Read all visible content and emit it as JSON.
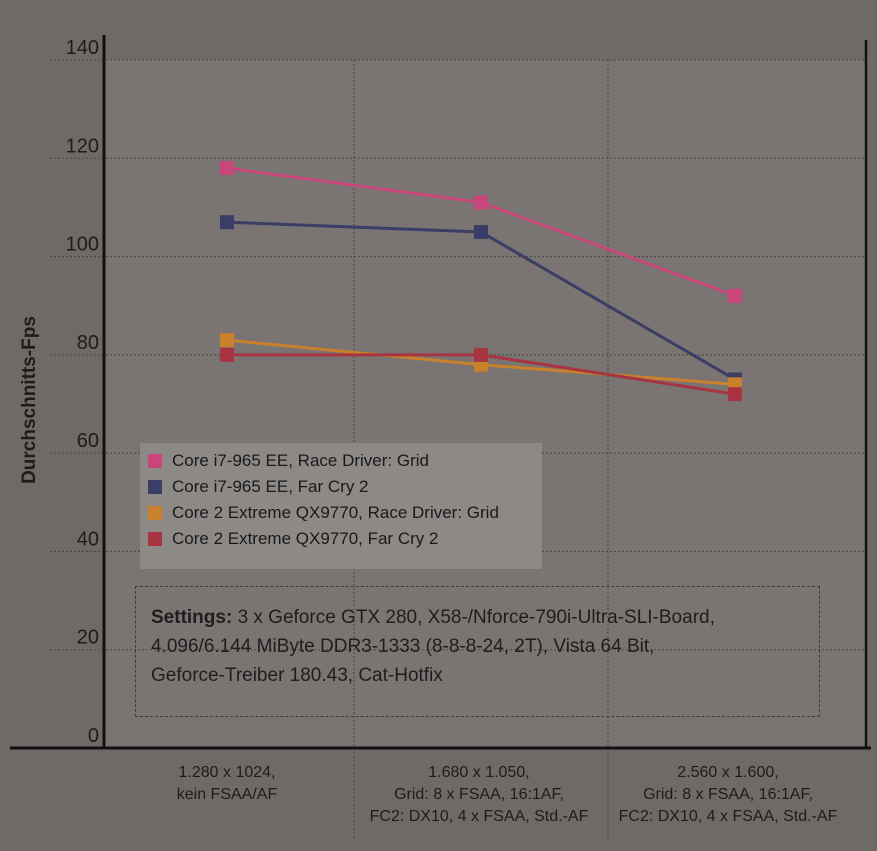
{
  "chart_data": {
    "type": "line",
    "ylabel": "Durchschnitts-Fps",
    "ylim": [
      0,
      140
    ],
    "yticks": [
      "0",
      "20",
      "40",
      "60",
      "80",
      "100",
      "120",
      "140"
    ],
    "ytick_values": [
      0,
      20,
      40,
      60,
      80,
      100,
      120,
      140
    ],
    "grid": true,
    "categories": [
      [
        "1.280 x 1024,",
        "kein FSAA/AF"
      ],
      [
        "1.680 x 1.050,",
        "Grid: 8 x FSAA, 16:1AF,",
        "FC2: DX10, 4 x FSAA, Std.-AF"
      ],
      [
        "2.560 x 1.600,",
        "Grid: 8 x FSAA, 16:1AF,",
        "FC2: DX10, 4 x FSAA, Std.-AF"
      ]
    ],
    "series": [
      {
        "name": "Core i7-965 EE, Race Driver: Grid",
        "values": [
          118,
          111,
          92
        ],
        "color": "#c9467a"
      },
      {
        "name": "Core i7-965 EE, Far Cry 2",
        "values": [
          107,
          105,
          75
        ],
        "color": "#3a3d66"
      },
      {
        "name": "Core 2 Extreme QX9770, Race Driver: Grid",
        "values": [
          83,
          78,
          74
        ],
        "color": "#c9812c"
      },
      {
        "name": "Core 2 Extreme QX9770, Far Cry 2",
        "values": [
          80,
          80,
          72
        ],
        "color": "#a83341"
      }
    ],
    "legend_position": "lower-left",
    "annotation": {
      "label": "Settings:",
      "lines": [
        "3 x Geforce GTX 280, X58-/Nforce-790i-Ultra-SLI-Board,",
        "4.096/6.144 MiByte DDR3-1333 (8-8-8-24, 2T), Vista 64 Bit,",
        "Geforce-Treiber 180.43, Cat-Hotfix"
      ]
    }
  }
}
